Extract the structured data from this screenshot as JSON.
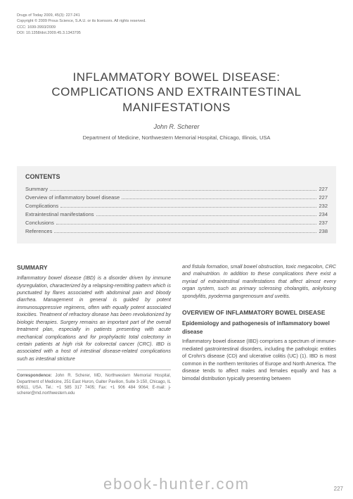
{
  "meta": {
    "line1": "Drugs of Today 2009, 45(3): 227-241",
    "line2": "Copyright © 2009 Prous Science, S.A.U. or its licensors. All rights reserved.",
    "line3": "CCC: 1699-3993/2009",
    "line4": "DOI: 10.1358/dot.2009.45.3.1343795"
  },
  "title_line1": "INFLAMMATORY BOWEL DISEASE:",
  "title_line2": "COMPLICATIONS AND EXTRAINTESTINAL",
  "title_line3": "MANIFESTATIONS",
  "author": "John R. Scherer",
  "affiliation": "Department of Medicine, Northwestern Memorial Hospital, Chicago, Illinois, USA",
  "contents_heading": "CONTENTS",
  "toc": [
    {
      "label": "Summary",
      "page": "227"
    },
    {
      "label": "Overview of inflammatory bowel disease",
      "page": "227"
    },
    {
      "label": "Complications",
      "page": "232"
    },
    {
      "label": "Extraintestinal manifestations",
      "page": "234"
    },
    {
      "label": "Conclusions",
      "page": "237"
    },
    {
      "label": "References",
      "page": "238"
    }
  ],
  "summary_heading": "SUMMARY",
  "summary_text": "Inflammatory bowel disease (IBD) is a disorder driven by immune dysregulation, characterized by a relapsing-remitting pattern which is punctuated by flares associated with abdominal pain and bloody diarrhea. Management in general is guided by potent immunosuppressive regimens, often with equally potent associated toxicities. Treatment of refractory disease has been revolutionized by biologic therapies. Surgery remains an important part of the overall treatment plan, especially in patients presenting with acute mechanical complications and for prophylactic total colectomy in certain patients at high risk for colorectal cancer (CRC). IBD is associated with a host of intestinal disease-related complications such as intestinal stricture",
  "col2_intro": "and fistula formation, small bowel obstruction, toxic megacolon, CRC and malnutrition. In addition to these complications there exist a myriad of extraintestinal manifestations that affect almost every organ system, such as primary sclerosing cholangitis, ankylosing spondylitis, pyoderma gangrenosum and uveitis.",
  "overview_heading": "OVERVIEW OF INFLAMMATORY BOWEL DISEASE",
  "epi_heading": "Epidemiology and pathogenesis of inflammatory bowel disease",
  "epi_text": "Inflammatory bowel disease (IBD) comprises a spectrum of immune-mediated gastrointestinal disorders, including the pathologic entities of Crohn's disease (CD) and ulcerative colitis (UC) (1). IBD is most common in the northern territories of Europe and North America. The disease tends to affect males and females equally and has a bimodal distribution typically presenting between",
  "corr_label": "Correspondence:",
  "corr_text": " John R. Scherer, MD, Northwestern Memorial Hospital, Department of Medicine, 251 East Huron, Galter Pavilion, Suite 3-150, Chicago, IL 60611, USA. Tel.: +1 585 317 7405; Fax: +1 906 484 9064; E-mail: j-scherer@md.northwestern.edu",
  "watermark": "ebook-hunter.com",
  "page_number": "227"
}
